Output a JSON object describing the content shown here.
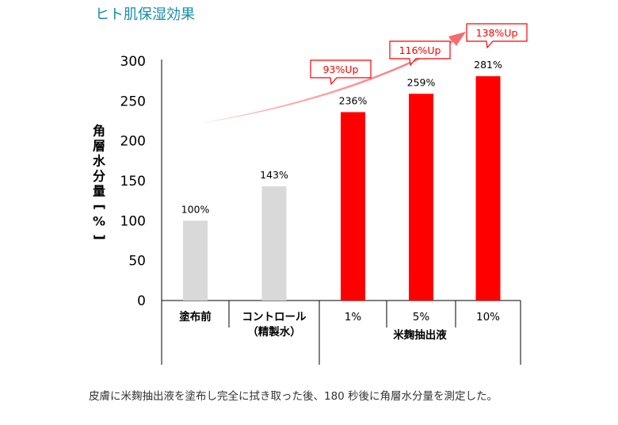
{
  "heading": "ヒト肌保湿効果",
  "caption": "皮膚に米麹抽出液を塗布し完全に拭き取った後、180 秒後に角層水分量を測定した。",
  "chart_data": {
    "type": "bar",
    "categories": [
      "塗布前",
      "コントロール\n（精製水）",
      "1%",
      "5%",
      "10%"
    ],
    "values": [
      100,
      143,
      236,
      259,
      281
    ],
    "value_labels": [
      "100%",
      "143%",
      "236%",
      "259%",
      "281%"
    ],
    "group_label": "米麹抽出液",
    "ylabel": "角層水分量[%]",
    "ylim": [
      0,
      300
    ],
    "yticks": [
      0,
      50,
      100,
      150,
      200,
      250,
      300
    ],
    "colors": {
      "baseline": "#d9d9d9",
      "treatment": "#ff0000",
      "arrow": "#f4666a",
      "callout_text": "#ff0000"
    },
    "callouts": [
      "93%Up",
      "116%Up",
      "138%Up"
    ]
  }
}
